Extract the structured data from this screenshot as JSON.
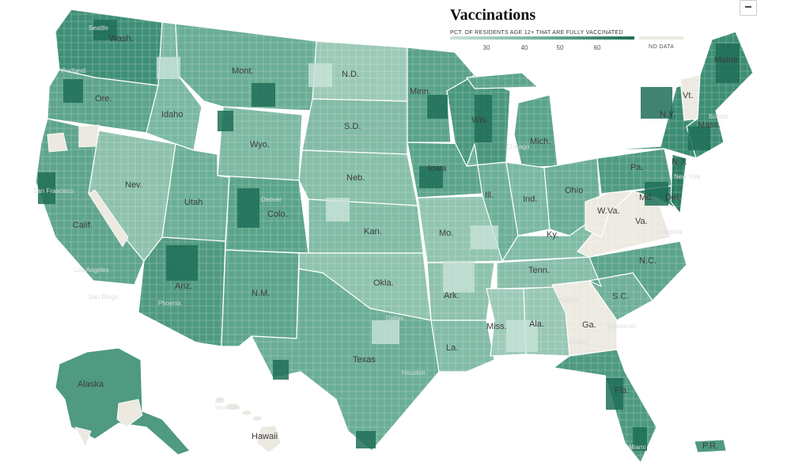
{
  "legend": {
    "title": "Vaccinations",
    "subtitle": "PCT. OF RESIDENTS AGE 12+ THAT ARE FULLY VACCINATED",
    "ticks": [
      "30",
      "40",
      "50",
      "60"
    ],
    "no_data_label": "NO DATA",
    "colors": {
      "low": "#c9e3d9",
      "mid": "#6fb09a",
      "high": "#1d6e57",
      "no_data": "#ece9e1",
      "border": "#ffffff"
    }
  },
  "controls": {
    "zoom_out_label": "−"
  },
  "states": {
    "wash": "Wash.",
    "ore": "Ore.",
    "calif": "Calif.",
    "nev": "Nev.",
    "idaho": "Idaho",
    "mont": "Mont.",
    "wyo": "Wyo.",
    "utah": "Utah",
    "ariz": "Ariz.",
    "colo": "Colo.",
    "nm": "N.M.",
    "nd": "N.D.",
    "sd": "S.D.",
    "neb": "Neb.",
    "kan": "Kan.",
    "okla": "Okla.",
    "texas": "Texas",
    "minn": "Minn.",
    "iowa": "Iowa",
    "mo": "Mo.",
    "ark": "Ark.",
    "la": "La.",
    "wis": "Wis.",
    "ill": "Ill.",
    "mich": "Mich.",
    "ind": "Ind.",
    "ohio": "Ohio",
    "ky": "Ky.",
    "tenn": "Tenn.",
    "miss": "Miss.",
    "ala": "Ala.",
    "ga": "Ga.",
    "fla": "Fla.",
    "sc": "S.C.",
    "nc": "N.C.",
    "va": "Va.",
    "wva": "W.Va.",
    "pa": "Pa.",
    "ny": "N.Y.",
    "vt": "Vt.",
    "maine": "Maine",
    "mass": "Mass.",
    "nj": "N.J.",
    "del": "Del.",
    "md": "Md.",
    "alaska": "Alaska",
    "hawaii": "Hawaii",
    "pr": "P.R."
  },
  "cities": {
    "seattle": "Seattle",
    "portland": "Portland",
    "sf": "San Francisco",
    "la": "Los Angeles",
    "san_diego": "San Diego",
    "phoenix": "Phoenix",
    "denver": "Denver",
    "dallas": "Dallas",
    "houston": "Houston",
    "chicago": "Chicago",
    "atlanta": "Atlanta",
    "miami": "Miami",
    "nyc": "New York",
    "boston": "Boston",
    "norfolk": "Norfolk",
    "albany": "Albany",
    "honolulu": "Honolulu",
    "savannah": "Savannah"
  }
}
